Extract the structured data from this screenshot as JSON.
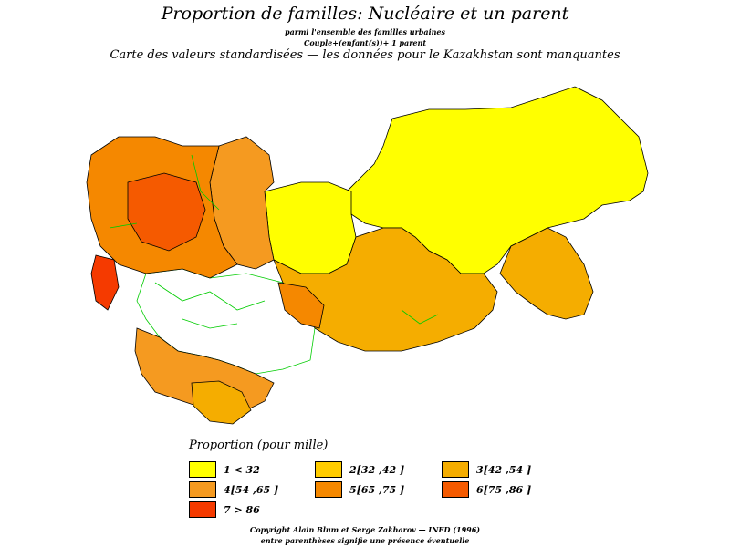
{
  "title": "Proportion de familles: Nucléaire et un parent",
  "subtitle_line1": "parmi l'ensemble des familles urbaines",
  "subtitle_line2": "Couple+(enfant(s))+ 1 parent",
  "subtitle_line3": "Carte des valeurs standardisées — les données pour le Kazakhstan sont manquantes",
  "legend": {
    "title": "Proportion (pour mille)",
    "classes": [
      {
        "label": "1 <  32",
        "color": "#ffff00"
      },
      {
        "label": "2[32 ,42 ]",
        "color": "#ffcc00"
      },
      {
        "label": "3[42 ,54 ]",
        "color": "#f5ad00"
      },
      {
        "label": "4[54 ,65 ]",
        "color": "#f59a20"
      },
      {
        "label": "5[65 ,75 ]",
        "color": "#f58800"
      },
      {
        "label": "6[75 ,86 ]",
        "color": "#f55a00"
      },
      {
        "label": "7  >  86",
        "color": "#f53a00"
      }
    ]
  },
  "colors": {
    "missing_data": "#ffffff",
    "region_border": "#000000",
    "internal_border": "#00cc00"
  },
  "footer": {
    "copyright": "Copyright Alain Blum et Serge Zakharov — INED (1996)",
    "note": "entre parenthèses signifie une présence éventuelle"
  }
}
